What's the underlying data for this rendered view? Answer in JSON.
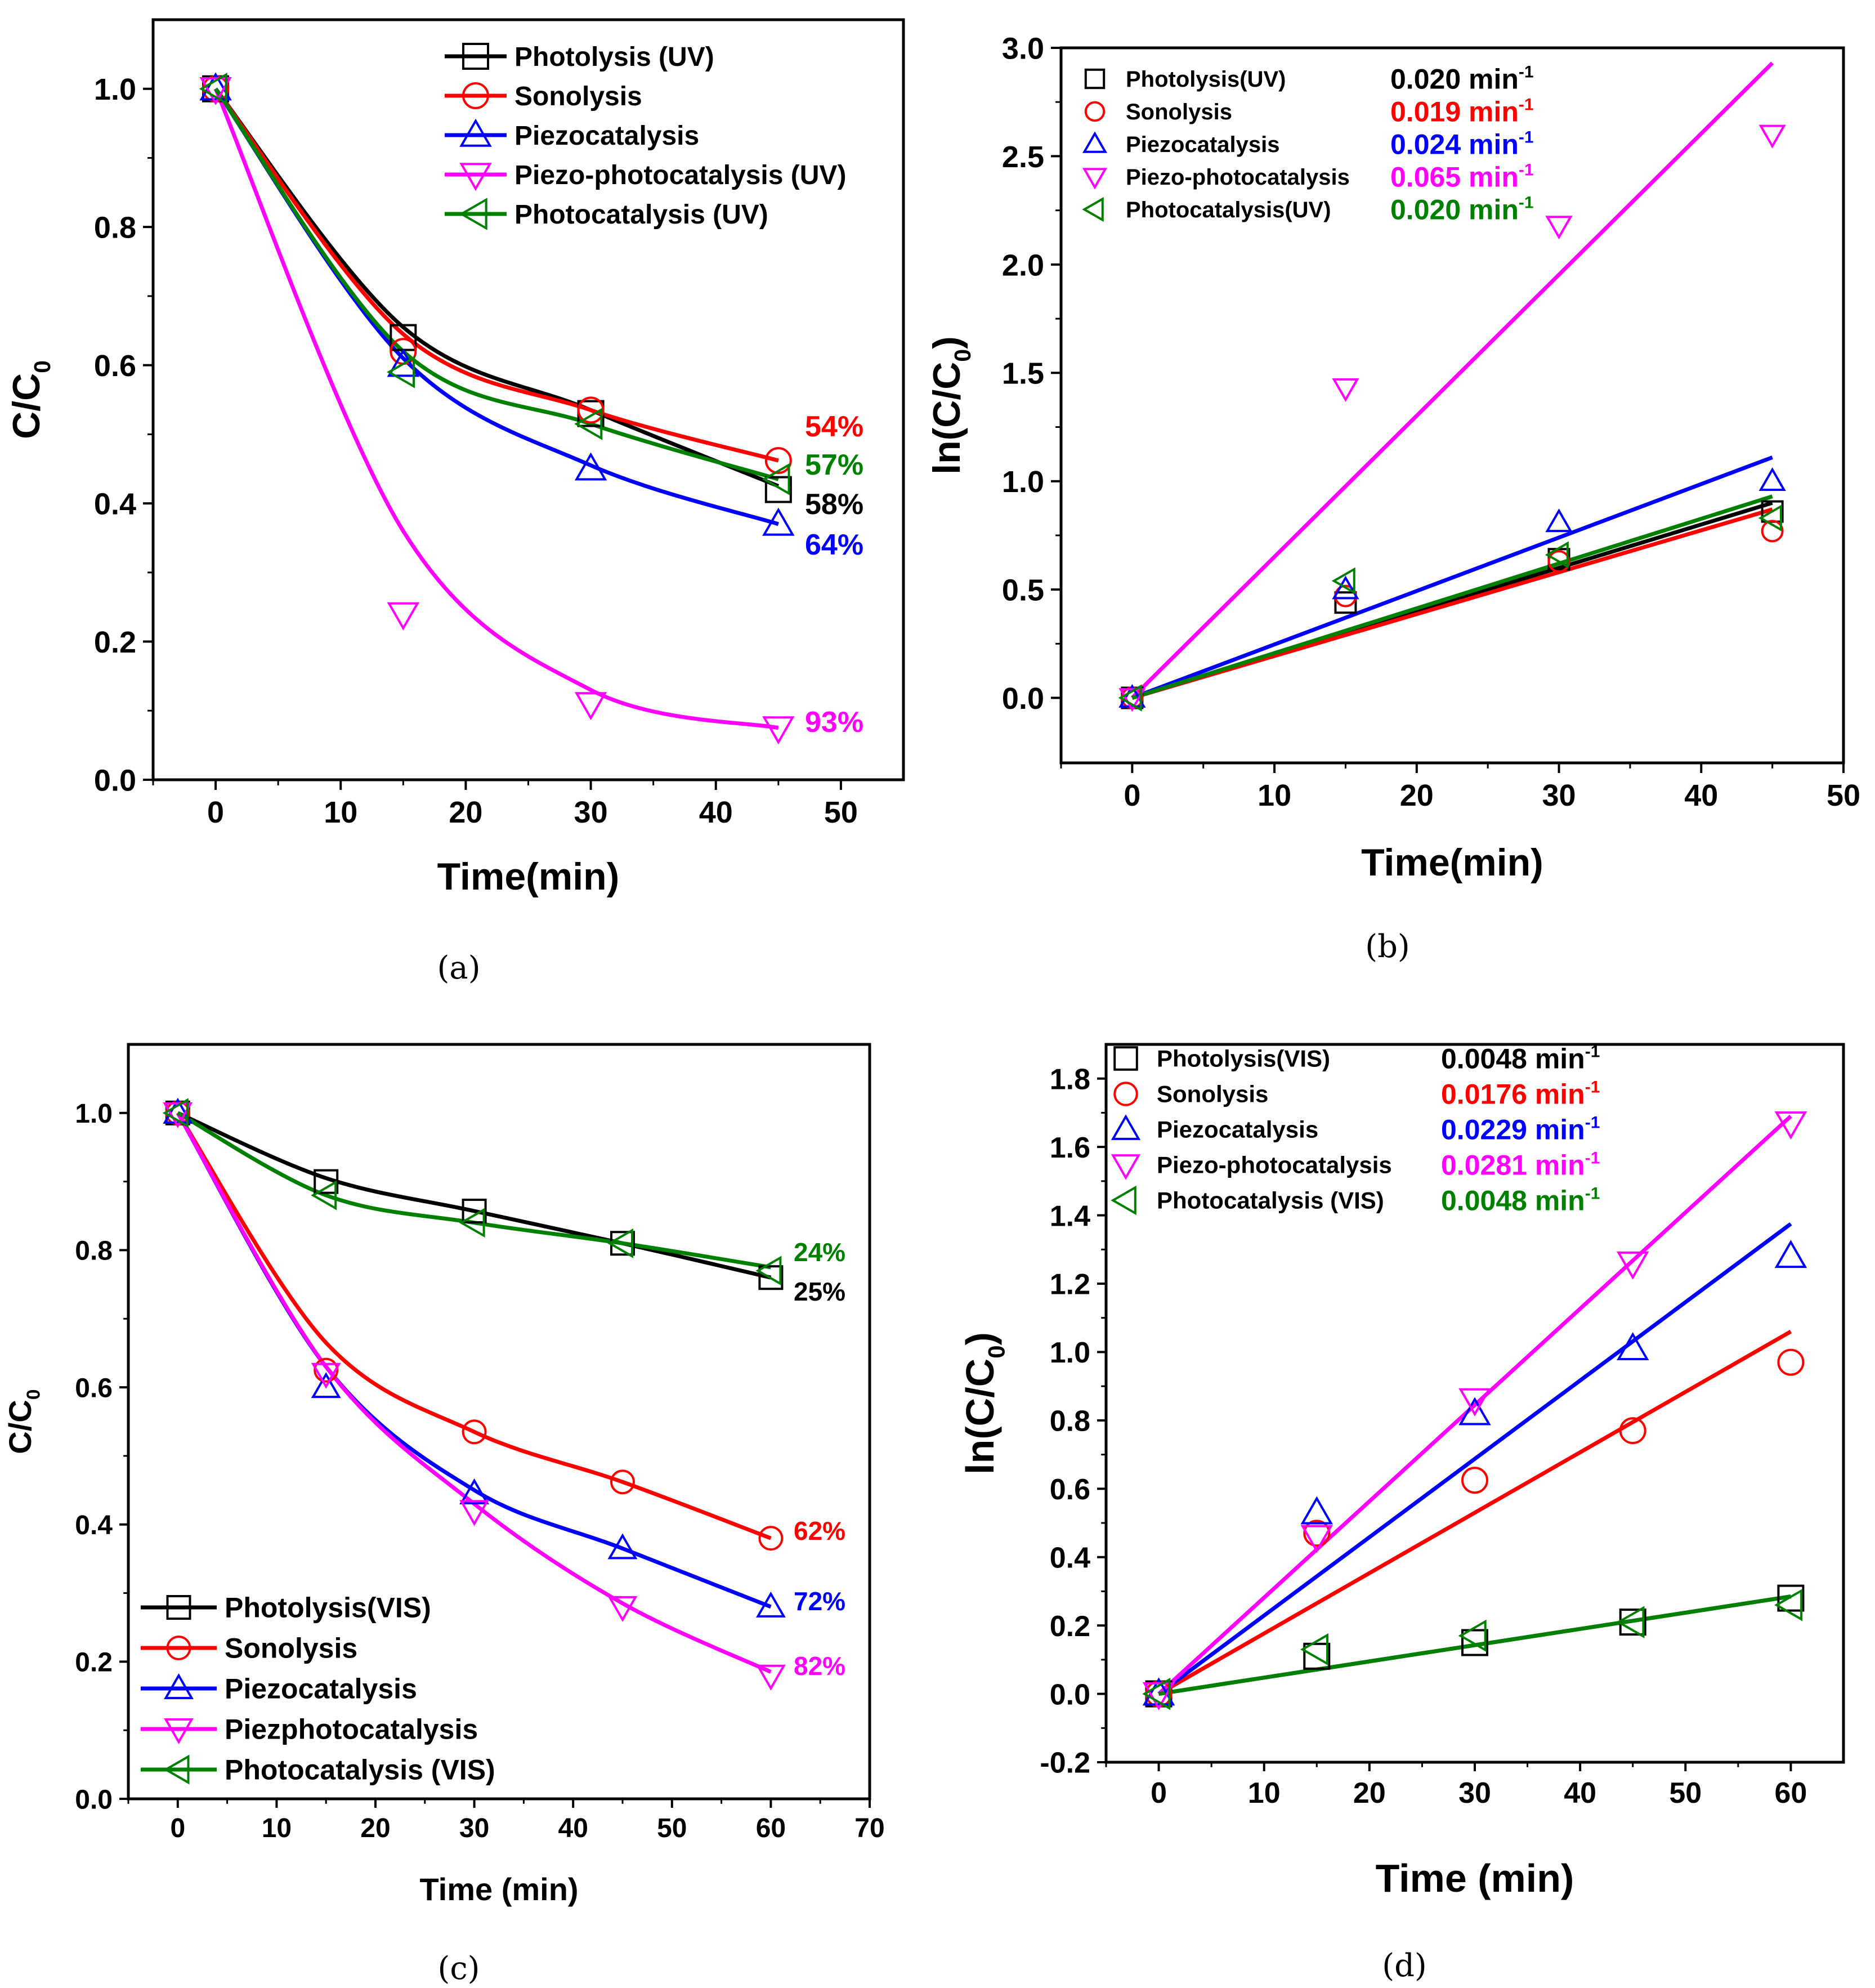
{
  "figure": {
    "captions": [
      "(a)",
      "(b)",
      "(c)",
      "(d)"
    ]
  },
  "chart_data": [
    {
      "id": "a",
      "type": "line",
      "xlabel": "Time(min)",
      "ylabel_main": "C/C",
      "ylabel_sub": "0",
      "xlim": [
        -5,
        55
      ],
      "ylim": [
        0.0,
        1.1
      ],
      "xticks": [
        0,
        10,
        20,
        30,
        40,
        50
      ],
      "yticks": [
        0.0,
        0.2,
        0.4,
        0.6,
        0.8,
        1.0
      ],
      "xtick_labels": [
        "0",
        "10",
        "20",
        "30",
        "40",
        "50"
      ],
      "ytick_labels": [
        "0.0",
        "0.2",
        "0.4",
        "0.6",
        "0.8",
        "1.0"
      ],
      "legend_position": "top-right",
      "series": [
        {
          "name": "Photolysis (UV)",
          "color": "#000000",
          "marker": "square",
          "x": [
            0,
            15,
            30,
            45
          ],
          "y": [
            1.0,
            0.64,
            0.53,
            0.42
          ],
          "fit": [
            1.0,
            0.655,
            0.535,
            0.425
          ],
          "label": "58%",
          "label_color": "#000000"
        },
        {
          "name": "Sonolysis",
          "color": "#ff0000",
          "marker": "circle",
          "x": [
            0,
            15,
            30,
            45
          ],
          "y": [
            1.0,
            0.62,
            0.535,
            0.462
          ],
          "fit": [
            1.0,
            0.645,
            0.535,
            0.462
          ],
          "label": "54%",
          "label_color": "#ff0000"
        },
        {
          "name": "Piezocatalysis",
          "color": "#0000ff",
          "marker": "triangle-up",
          "x": [
            0,
            15,
            30,
            45
          ],
          "y": [
            1.0,
            0.6,
            0.45,
            0.37
          ],
          "fit": [
            1.0,
            0.61,
            0.455,
            0.37
          ],
          "label": "64%",
          "label_color": "#0000ff"
        },
        {
          "name": "Piezo-photocatalysis (UV)",
          "color": "#ff00ff",
          "marker": "triangle-down",
          "x": [
            0,
            15,
            30,
            45
          ],
          "y": [
            1.0,
            0.24,
            0.11,
            0.075
          ],
          "fit": [
            1.0,
            0.36,
            0.13,
            0.075
          ],
          "label": "93%",
          "label_color": "#ff00ff"
        },
        {
          "name": "Photocatalysis (UV)",
          "color": "#008000",
          "marker": "triangle-left",
          "x": [
            0,
            15,
            30,
            45
          ],
          "y": [
            1.0,
            0.59,
            0.515,
            0.435
          ],
          "fit": [
            1.0,
            0.62,
            0.515,
            0.435
          ],
          "label": "57%",
          "label_color": "#008000"
        }
      ],
      "percent_order": [
        1,
        4,
        0,
        2
      ]
    },
    {
      "id": "b",
      "type": "scatter",
      "xlabel": "Time(min)",
      "ylabel_main": "ln(C/C",
      "ylabel_sub": "0",
      "ylabel_end": ")",
      "xlim": [
        -5,
        50
      ],
      "ylim": [
        -0.3,
        3.0
      ],
      "xticks": [
        0,
        10,
        20,
        30,
        40,
        50
      ],
      "yticks": [
        0.0,
        0.5,
        1.0,
        1.5,
        2.0,
        2.5,
        3.0
      ],
      "xtick_labels": [
        "0",
        "10",
        "20",
        "30",
        "40",
        "50"
      ],
      "ytick_labels": [
        "0.0",
        "0.5",
        "1.0",
        "1.5",
        "2.0",
        "2.5",
        "3.0"
      ],
      "legend_position": "top-left",
      "rate_unit": "min",
      "rate_exp": "-1",
      "series": [
        {
          "name": "Photolysis(UV)",
          "color": "#000000",
          "marker": "square",
          "x": [
            0,
            15,
            30,
            45
          ],
          "y": [
            0.0,
            0.44,
            0.64,
            0.86
          ],
          "slope": 0.02,
          "fit_end": 0.9,
          "rate": "0.020"
        },
        {
          "name": "Sonolysis",
          "color": "#ff0000",
          "marker": "circle",
          "x": [
            0,
            15,
            30,
            45
          ],
          "y": [
            0.0,
            0.47,
            0.63,
            0.77
          ],
          "slope": 0.019,
          "fit_end": 0.87,
          "rate": "0.019"
        },
        {
          "name": "Piezocatalysis",
          "color": "#0000ff",
          "marker": "triangle-up",
          "x": [
            0,
            15,
            30,
            45
          ],
          "y": [
            0.0,
            0.5,
            0.81,
            1.0
          ],
          "slope": 0.024,
          "fit_end": 1.11,
          "rate": "0.024"
        },
        {
          "name": "Piezo-photocatalysis",
          "color": "#ff00ff",
          "marker": "triangle-down",
          "x": [
            0,
            15,
            30,
            45
          ],
          "y": [
            0.0,
            1.43,
            2.18,
            2.6
          ],
          "slope": 0.065,
          "fit_end": 2.93,
          "rate": "0.065"
        },
        {
          "name": "Photocatalysis(UV)",
          "color": "#008000",
          "marker": "triangle-left",
          "x": [
            0,
            15,
            30,
            45
          ],
          "y": [
            0.0,
            0.54,
            0.66,
            0.83
          ],
          "slope": 0.02,
          "fit_end": 0.93,
          "rate": "0.020"
        }
      ]
    },
    {
      "id": "c",
      "type": "line",
      "xlabel": "Time (min)",
      "ylabel_main": "C/C",
      "ylabel_sub": "0",
      "xlim": [
        -5,
        70
      ],
      "ylim": [
        0.0,
        1.1
      ],
      "xticks": [
        0,
        10,
        20,
        30,
        40,
        50,
        60,
        70
      ],
      "yticks": [
        0.0,
        0.2,
        0.4,
        0.6,
        0.8,
        1.0
      ],
      "xtick_labels": [
        "0",
        "10",
        "20",
        "30",
        "40",
        "50",
        "60",
        "70"
      ],
      "ytick_labels": [
        "0.0",
        "0.2",
        "0.4",
        "0.6",
        "0.8",
        "1.0"
      ],
      "legend_position": "bottom-left",
      "series": [
        {
          "name": "Photolysis(VIS)",
          "color": "#000000",
          "marker": "square",
          "x": [
            0,
            15,
            30,
            45,
            60
          ],
          "y": [
            1.0,
            0.9,
            0.857,
            0.81,
            0.76
          ],
          "fit": [
            1.0,
            0.905,
            0.857,
            0.81,
            0.76
          ],
          "label": "25%",
          "label_color": "#000000"
        },
        {
          "name": "Sonolysis",
          "color": "#ff0000",
          "marker": "circle",
          "x": [
            0,
            15,
            30,
            45,
            60
          ],
          "y": [
            1.0,
            0.625,
            0.535,
            0.462,
            0.38
          ],
          "fit": [
            1.0,
            0.665,
            0.535,
            0.462,
            0.38
          ],
          "label": "62%",
          "label_color": "#ff0000"
        },
        {
          "name": "Piezocatalysis",
          "color": "#0000ff",
          "marker": "triangle-up",
          "x": [
            0,
            15,
            30,
            45,
            60
          ],
          "y": [
            1.0,
            0.6,
            0.445,
            0.365,
            0.28
          ],
          "fit": [
            1.0,
            0.63,
            0.45,
            0.365,
            0.28
          ],
          "label": "72%",
          "label_color": "#0000ff"
        },
        {
          "name": "Piezphotocatalysis",
          "color": "#ff00ff",
          "marker": "triangle-down",
          "x": [
            0,
            15,
            30,
            45,
            60
          ],
          "y": [
            1.0,
            0.62,
            0.42,
            0.28,
            0.18
          ],
          "fit": [
            1.0,
            0.63,
            0.43,
            0.285,
            0.185
          ],
          "label": "82%",
          "label_color": "#ff00ff"
        },
        {
          "name": "Photocatalysis (VIS)",
          "color": "#008000",
          "marker": "triangle-left",
          "x": [
            0,
            15,
            30,
            45,
            60
          ],
          "y": [
            1.0,
            0.88,
            0.84,
            0.81,
            0.77
          ],
          "fit": [
            1.0,
            0.88,
            0.84,
            0.81,
            0.775
          ],
          "label": "24%",
          "label_color": "#008000"
        }
      ],
      "percent_order": [
        4,
        0,
        1,
        2,
        3
      ]
    },
    {
      "id": "d",
      "type": "scatter",
      "xlabel": "Time (min)",
      "ylabel_main": "ln(C/C",
      "ylabel_sub": "0",
      "ylabel_end": ")",
      "xlim": [
        -5,
        65
      ],
      "ylim": [
        -0.2,
        1.9
      ],
      "xticks": [
        0,
        10,
        20,
        30,
        40,
        50,
        60
      ],
      "yticks": [
        -0.2,
        0.0,
        0.2,
        0.4,
        0.6,
        0.8,
        1.0,
        1.2,
        1.4,
        1.6,
        1.8
      ],
      "xtick_labels": [
        "0",
        "10",
        "20",
        "30",
        "40",
        "50",
        "60"
      ],
      "ytick_labels": [
        "-0.2",
        "0.0",
        "0.2",
        "0.4",
        "0.6",
        "0.8",
        "1.0",
        "1.2",
        "1.4",
        "1.6",
        "1.8"
      ],
      "legend_position": "top-left",
      "rate_unit": "min",
      "rate_exp": "-1",
      "series": [
        {
          "name": "Photolysis(VIS)",
          "color": "#000000",
          "marker": "square",
          "x": [
            0,
            15,
            30,
            45,
            60
          ],
          "y": [
            0.0,
            0.11,
            0.15,
            0.21,
            0.28
          ],
          "slope": 0.0048,
          "fit_end": 0.285,
          "rate": "0.0048"
        },
        {
          "name": "Sonolysis",
          "color": "#ff0000",
          "marker": "circle",
          "x": [
            0,
            15,
            30,
            45,
            60
          ],
          "y": [
            0.0,
            0.47,
            0.625,
            0.77,
            0.97
          ],
          "slope": 0.0176,
          "fit_end": 1.06,
          "rate": "0.0176"
        },
        {
          "name": "Piezocatalysis",
          "color": "#0000ff",
          "marker": "triangle-up",
          "x": [
            0,
            15,
            30,
            45,
            60
          ],
          "y": [
            0.0,
            0.53,
            0.82,
            1.01,
            1.28
          ],
          "slope": 0.0229,
          "fit_end": 1.375,
          "rate": "0.0229"
        },
        {
          "name": "Piezo-photocatalysis",
          "color": "#ff00ff",
          "marker": "triangle-down",
          "x": [
            0,
            15,
            30,
            45,
            60
          ],
          "y": [
            0.0,
            0.46,
            0.86,
            1.26,
            1.67
          ],
          "slope": 0.0281,
          "fit_end": 1.69,
          "rate": "0.0281"
        },
        {
          "name": "Photocatalysis (VIS)",
          "color": "#008000",
          "marker": "triangle-left",
          "x": [
            0,
            15,
            30,
            45,
            60
          ],
          "y": [
            0.0,
            0.13,
            0.17,
            0.21,
            0.26
          ],
          "slope": 0.0048,
          "fit_end": 0.285,
          "rate": "0.0048"
        }
      ]
    }
  ]
}
